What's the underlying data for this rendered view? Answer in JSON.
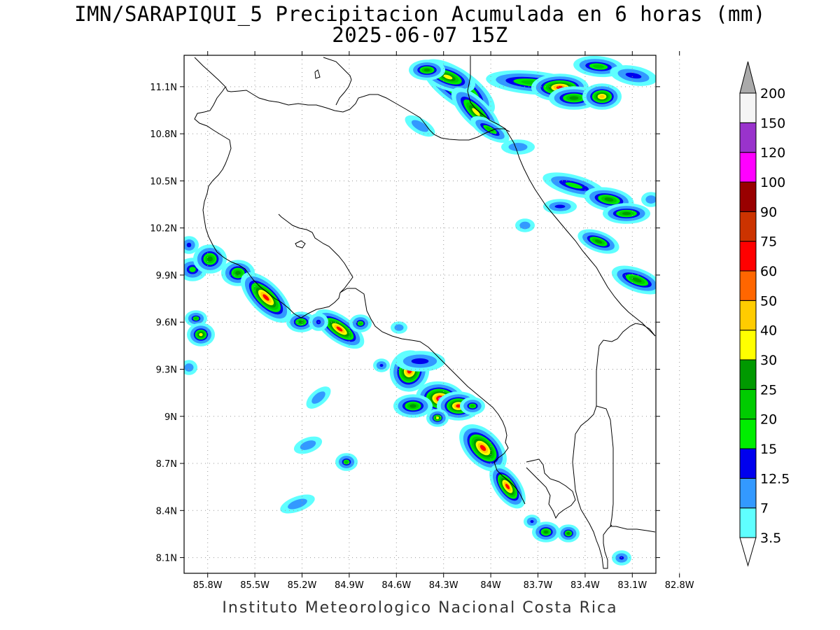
{
  "title": {
    "line1": "IMN/SARAPIQUI_5 Precipitacion Acumulada en 6 horas (mm)",
    "line2": "2025-06-07 15Z"
  },
  "footer": "Instituto Meteorologico Nacional Costa Rica",
  "axes": {
    "lat_labels": [
      "11.1N",
      "10.8N",
      "10.5N",
      "10.2N",
      "9.9N",
      "9.6N",
      "9.3N",
      "9N",
      "8.7N",
      "8.4N",
      "8.1N"
    ],
    "lon_labels": [
      "85.8W",
      "85.5W",
      "85.2W",
      "84.9W",
      "84.6W",
      "84.3W",
      "84W",
      "83.7W",
      "83.4W",
      "83.1W",
      "82.8W"
    ],
    "lat_range": [
      8.0,
      11.3
    ],
    "lon_range": [
      -85.95,
      -82.95
    ],
    "grid": "dotted"
  },
  "colorbar": {
    "levels": [
      "3.5",
      "7",
      "12.5",
      "15",
      "20",
      "25",
      "30",
      "40",
      "50",
      "60",
      "75",
      "90",
      "100",
      "120",
      "150",
      "200"
    ],
    "colors": [
      "#ffffff",
      "#5fffff",
      "#3399ff",
      "#0000ee",
      "#00ee00",
      "#00cc00",
      "#009900",
      "#ffff00",
      "#ffcc00",
      "#ff6600",
      "#ff0000",
      "#cc3300",
      "#990000",
      "#ff00ff",
      "#9933cc",
      "#f5f5f5",
      "#aaaaaa"
    ]
  },
  "colors": {
    "light": "#5fffff",
    "mid": "#3399ff",
    "blue": "#0000ee",
    "green_light": "#00ee00",
    "green": "#00cc00",
    "green_dark": "#009900",
    "yellow": "#ffff00",
    "orange": "#ffcc00",
    "red": "#ff0000",
    "magenta": "#ff00ff"
  }
}
